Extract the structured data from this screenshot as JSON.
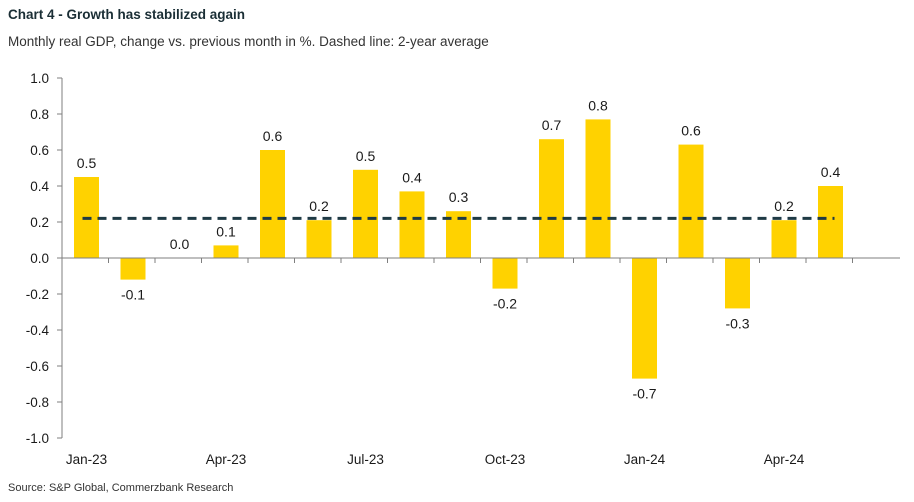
{
  "header": {
    "title": "Chart 4 - Growth has stabilized again",
    "subtitle": "Monthly real GDP, change vs. previous month in %. Dashed line: 2-year average"
  },
  "footer": {
    "source": "Source: S&P Global, Commerzbank Research"
  },
  "chart_data": {
    "type": "bar",
    "categories": [
      "Jan-23",
      "Feb-23",
      "Mar-23",
      "Apr-23",
      "May-23",
      "Jun-23",
      "Jul-23",
      "Aug-23",
      "Sep-23",
      "Oct-23",
      "Nov-23",
      "Dec-23",
      "Jan-24",
      "Feb-24",
      "Mar-24",
      "Apr-24",
      "May-24"
    ],
    "values": [
      0.45,
      -0.12,
      0.0,
      0.07,
      0.6,
      0.21,
      0.49,
      0.37,
      0.26,
      -0.17,
      0.66,
      0.77,
      -0.67,
      0.63,
      -0.28,
      0.21,
      0.4
    ],
    "data_labels": [
      "0.5",
      "-0.1",
      "0.0",
      "0.1",
      "0.6",
      "0.2",
      "0.5",
      "0.4",
      "0.3",
      "-0.2",
      "0.7",
      "0.8",
      "-0.7",
      "0.6",
      "-0.3",
      "0.2",
      "0.4"
    ],
    "x_tick_labels": [
      {
        "index": 0,
        "label": "Jan-23"
      },
      {
        "index": 3,
        "label": "Apr-23"
      },
      {
        "index": 6,
        "label": "Jul-23"
      },
      {
        "index": 9,
        "label": "Oct-23"
      },
      {
        "index": 12,
        "label": "Jan-24"
      },
      {
        "index": 15,
        "label": "Apr-24"
      }
    ],
    "y_ticks": [
      "1.0",
      "0.8",
      "0.6",
      "0.4",
      "0.2",
      "0.0",
      "-0.2",
      "-0.4",
      "-0.6",
      "-0.8",
      "-1.0"
    ],
    "ylim": [
      -1.0,
      1.0
    ],
    "reference_line": {
      "style": "dashed",
      "value": 0.22
    },
    "grid": false,
    "bar_color": "#ffd200",
    "line_color": "#1f3a45"
  }
}
